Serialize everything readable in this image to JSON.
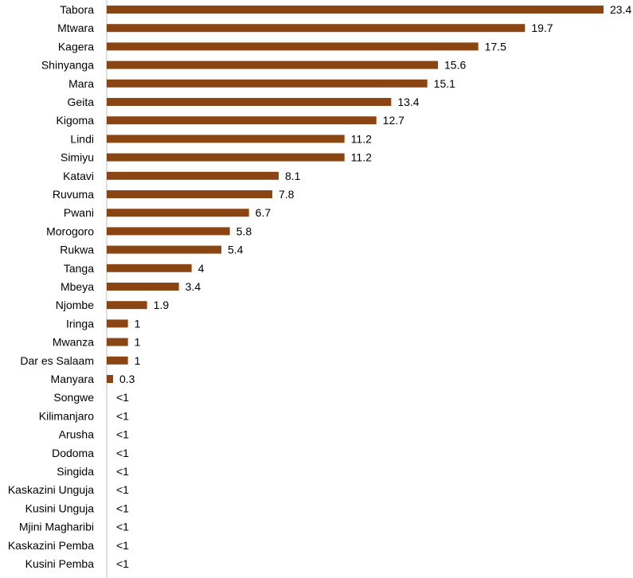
{
  "chart_data": {
    "type": "bar",
    "orientation": "horizontal",
    "bar_color": "#8B4513",
    "title": "",
    "xlabel": "",
    "ylabel": "",
    "xlim": [
      0,
      23.4
    ],
    "grid": false,
    "legend": "none",
    "categories": [
      "Tabora",
      "Mtwara",
      "Kagera",
      "Shinyanga",
      "Mara",
      "Geita",
      "Kigoma",
      "Lindi",
      "Simiyu",
      "Katavi",
      "Ruvuma",
      "Pwani",
      "Morogoro",
      "Rukwa",
      "Tanga",
      "Mbeya",
      "Njombe",
      "Iringa",
      "Mwanza",
      "Dar es Salaam",
      "Manyara",
      "Songwe",
      "Kilimanjaro",
      "Arusha",
      "Dodoma",
      "Singida",
      "Kaskazini Unguja",
      "Kusini Unguja",
      "Mjini Magharibi",
      "Kaskazini Pemba",
      "Kusini Pemba"
    ],
    "values": [
      23.4,
      19.7,
      17.5,
      15.6,
      15.1,
      13.4,
      12.7,
      11.2,
      11.2,
      8.1,
      7.8,
      6.7,
      5.8,
      5.4,
      4,
      3.4,
      1.9,
      1,
      1,
      1,
      0.3,
      0,
      0,
      0,
      0,
      0,
      0,
      0,
      0,
      0,
      0
    ],
    "value_labels": [
      "23.4",
      "19.7",
      "17.5",
      "15.6",
      "15.1",
      "13.4",
      "12.7",
      "11.2",
      "11.2",
      "8.1",
      "7.8",
      "6.7",
      "5.8",
      "5.4",
      "4",
      "3.4",
      "1.9",
      "1",
      "1",
      "1",
      "0.3",
      "<1",
      "<1",
      "<1",
      "<1",
      "<1",
      "<1",
      "<1",
      "<1",
      "<1",
      "<1"
    ]
  }
}
